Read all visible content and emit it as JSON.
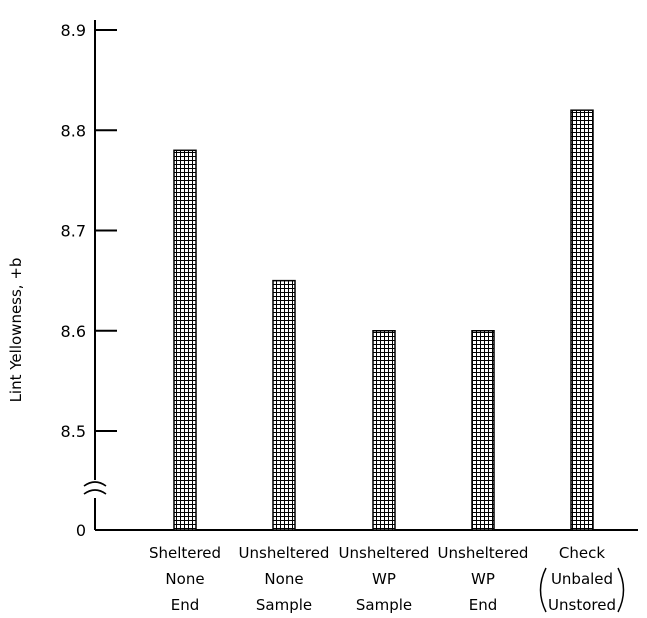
{
  "chart_data": {
    "type": "bar",
    "ylabel": "Lint Yellowness, +b",
    "xlabel": "",
    "title": "",
    "ylim": [
      8.4,
      8.9
    ],
    "axis_break": true,
    "y_ticks": [
      "0",
      "8.5",
      "8.6",
      "8.7",
      "8.8",
      "8.9"
    ],
    "categories": [
      {
        "lines": [
          "Sheltered",
          "None",
          "End"
        ]
      },
      {
        "lines": [
          "Unsheltered",
          "None",
          "Sample"
        ]
      },
      {
        "lines": [
          "Unsheltered",
          "WP",
          "Sample"
        ]
      },
      {
        "lines": [
          "Unsheltered",
          "WP",
          "End"
        ]
      },
      {
        "lines": [
          "Check",
          "Unbaled",
          "Unstored"
        ],
        "bracketed_lines": [
          1,
          2
        ]
      }
    ],
    "values": [
      8.78,
      8.65,
      8.6,
      8.6,
      8.82
    ],
    "bar_pattern": "crosshatch",
    "grid": false
  }
}
